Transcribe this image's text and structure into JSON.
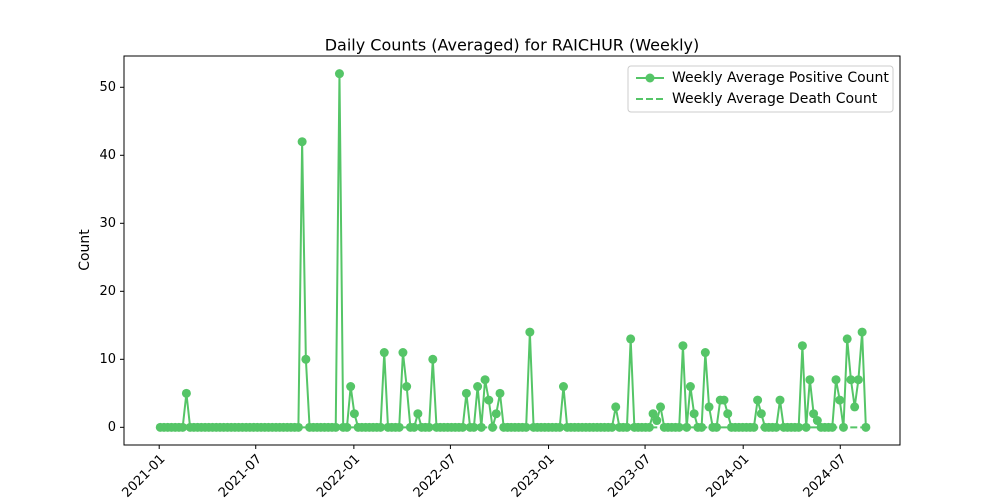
{
  "chart_data": {
    "type": "line",
    "title": "Daily Counts (Averaged) for RAICHUR (Weekly)",
    "ylabel": "Count",
    "x": [
      "2021-01-03",
      "2021-01-10",
      "2021-01-17",
      "2021-01-24",
      "2021-01-31",
      "2021-02-07",
      "2021-02-14",
      "2021-02-21",
      "2021-02-28",
      "2021-03-07",
      "2021-03-14",
      "2021-03-21",
      "2021-03-28",
      "2021-04-04",
      "2021-04-11",
      "2021-04-18",
      "2021-04-25",
      "2021-05-02",
      "2021-05-09",
      "2021-05-16",
      "2021-05-23",
      "2021-05-30",
      "2021-06-06",
      "2021-06-13",
      "2021-06-20",
      "2021-06-27",
      "2021-07-04",
      "2021-07-11",
      "2021-07-18",
      "2021-07-25",
      "2021-08-01",
      "2021-08-08",
      "2021-08-15",
      "2021-08-22",
      "2021-08-29",
      "2021-09-05",
      "2021-09-12",
      "2021-09-19",
      "2021-09-26",
      "2021-10-03",
      "2021-10-10",
      "2021-10-17",
      "2021-10-24",
      "2021-10-31",
      "2021-11-07",
      "2021-11-14",
      "2021-11-21",
      "2021-11-28",
      "2021-12-05",
      "2021-12-12",
      "2021-12-19",
      "2021-12-26",
      "2022-01-02",
      "2022-01-09",
      "2022-01-16",
      "2022-01-23",
      "2022-01-30",
      "2022-02-06",
      "2022-02-13",
      "2022-02-20",
      "2022-02-27",
      "2022-03-06",
      "2022-03-13",
      "2022-03-20",
      "2022-03-27",
      "2022-04-03",
      "2022-04-10",
      "2022-04-17",
      "2022-04-24",
      "2022-05-01",
      "2022-05-08",
      "2022-05-15",
      "2022-05-22",
      "2022-05-29",
      "2022-06-05",
      "2022-06-12",
      "2022-06-19",
      "2022-06-26",
      "2022-07-03",
      "2022-07-10",
      "2022-07-17",
      "2022-07-24",
      "2022-07-31",
      "2022-08-07",
      "2022-08-14",
      "2022-08-21",
      "2022-08-28",
      "2022-09-04",
      "2022-09-11",
      "2022-09-18",
      "2022-09-25",
      "2022-10-02",
      "2022-10-09",
      "2022-10-16",
      "2022-10-23",
      "2022-10-30",
      "2022-11-06",
      "2022-11-13",
      "2022-11-20",
      "2022-11-27",
      "2022-12-04",
      "2022-12-11",
      "2022-12-18",
      "2022-12-25",
      "2023-01-01",
      "2023-01-08",
      "2023-01-15",
      "2023-01-22",
      "2023-01-29",
      "2023-02-05",
      "2023-02-12",
      "2023-02-19",
      "2023-02-26",
      "2023-03-05",
      "2023-03-12",
      "2023-03-19",
      "2023-03-26",
      "2023-04-02",
      "2023-04-09",
      "2023-04-16",
      "2023-04-23",
      "2023-04-30",
      "2023-05-07",
      "2023-05-14",
      "2023-05-21",
      "2023-05-28",
      "2023-06-04",
      "2023-06-11",
      "2023-06-18",
      "2023-06-25",
      "2023-07-02",
      "2023-07-09",
      "2023-07-16",
      "2023-07-23",
      "2023-07-30",
      "2023-08-06",
      "2023-08-13",
      "2023-08-20",
      "2023-08-27",
      "2023-09-03",
      "2023-09-10",
      "2023-09-17",
      "2023-09-24",
      "2023-10-01",
      "2023-10-08",
      "2023-10-15",
      "2023-10-22",
      "2023-10-29",
      "2023-11-05",
      "2023-11-12",
      "2023-11-19",
      "2023-11-26",
      "2023-12-03",
      "2023-12-10",
      "2023-12-17",
      "2023-12-24",
      "2023-12-31",
      "2024-01-07",
      "2024-01-14",
      "2024-01-21",
      "2024-01-28",
      "2024-02-04",
      "2024-02-11",
      "2024-02-18",
      "2024-02-25",
      "2024-03-03",
      "2024-03-10",
      "2024-03-17",
      "2024-03-24",
      "2024-03-31",
      "2024-04-07",
      "2024-04-14",
      "2024-04-21",
      "2024-04-28",
      "2024-05-05",
      "2024-05-12",
      "2024-05-19",
      "2024-05-26",
      "2024-06-02",
      "2024-06-09",
      "2024-06-16",
      "2024-06-23",
      "2024-06-30",
      "2024-07-07",
      "2024-07-14",
      "2024-07-21",
      "2024-07-28",
      "2024-08-04",
      "2024-08-11",
      "2024-08-18"
    ],
    "series": [
      {
        "name": "Weekly Average Positive Count",
        "color": "#55c567",
        "style": "solid",
        "marker": true,
        "values": [
          0,
          0,
          0,
          0,
          0,
          0,
          0,
          5,
          0,
          0,
          0,
          0,
          0,
          0,
          0,
          0,
          0,
          0,
          0,
          0,
          0,
          0,
          0,
          0,
          0,
          0,
          0,
          0,
          0,
          0,
          0,
          0,
          0,
          0,
          0,
          0,
          0,
          0,
          42,
          10,
          0,
          0,
          0,
          0,
          0,
          0,
          0,
          0,
          52,
          0,
          0,
          6,
          2,
          0,
          0,
          0,
          0,
          0,
          0,
          0,
          11,
          0,
          0,
          0,
          0,
          11,
          6,
          0,
          0,
          2,
          0,
          0,
          0,
          10,
          0,
          0,
          0,
          0,
          0,
          0,
          0,
          0,
          5,
          0,
          0,
          6,
          0,
          7,
          4,
          0,
          2,
          5,
          0,
          0,
          0,
          0,
          0,
          0,
          0,
          14,
          0,
          0,
          0,
          0,
          0,
          0,
          0,
          0,
          6,
          0,
          0,
          0,
          0,
          0,
          0,
          0,
          0,
          0,
          0,
          0,
          0,
          0,
          3,
          0,
          0,
          0,
          13,
          0,
          0,
          0,
          0,
          0,
          2,
          1,
          3,
          0,
          0,
          0,
          0,
          0,
          12,
          0,
          6,
          2,
          0,
          0,
          11,
          3,
          0,
          0,
          4,
          4,
          2,
          0,
          0,
          0,
          0,
          0,
          0,
          0,
          4,
          2,
          0,
          0,
          0,
          0,
          4,
          0,
          0,
          0,
          0,
          0,
          12,
          0,
          7,
          2,
          1,
          0,
          0,
          0,
          0,
          7,
          4,
          0,
          13,
          7,
          3,
          7,
          14,
          0
        ]
      },
      {
        "name": "Weekly Average Death Count",
        "color": "#55c567",
        "style": "dashed",
        "marker": false,
        "values": [
          0,
          0,
          0,
          0,
          0,
          0,
          0,
          0,
          0,
          0,
          0,
          0,
          0,
          0,
          0,
          0,
          0,
          0,
          0,
          0,
          0,
          0,
          0,
          0,
          0,
          0,
          0,
          0,
          0,
          0,
          0,
          0,
          0,
          0,
          0,
          0,
          0,
          0,
          0,
          0,
          0,
          0,
          0,
          0,
          0,
          0,
          0,
          0,
          0,
          0,
          0,
          0,
          0,
          0,
          0,
          0,
          0,
          0,
          0,
          0,
          0,
          0,
          0,
          0,
          0,
          0,
          0,
          0,
          0,
          0,
          0,
          0,
          0,
          0,
          0,
          0,
          0,
          0,
          0,
          0,
          0,
          0,
          0,
          0,
          0,
          0,
          0,
          0,
          0,
          0,
          0,
          0,
          0,
          0,
          0,
          0,
          0,
          0,
          0,
          0,
          0,
          0,
          0,
          0,
          0,
          0,
          0,
          0,
          0,
          0,
          0,
          0,
          0,
          0,
          0,
          0,
          0,
          0,
          0,
          0,
          0,
          0,
          0,
          0,
          0,
          0,
          0,
          0,
          0,
          0,
          0,
          0,
          0,
          0,
          0,
          0,
          0,
          0,
          0,
          0,
          0,
          0,
          0,
          0,
          0,
          0,
          0,
          0,
          0,
          0,
          0,
          0,
          0,
          0,
          0,
          0,
          0,
          0,
          0,
          0,
          0,
          0,
          0,
          0,
          0,
          0,
          0,
          0,
          0,
          0,
          0,
          0,
          0,
          0,
          0,
          0,
          0,
          0,
          0,
          0,
          0,
          0,
          0,
          0,
          0,
          0,
          0,
          0,
          0,
          0
        ]
      }
    ],
    "xlim": [
      "2020-10-27",
      "2024-10-21"
    ],
    "xticks": [
      {
        "value": "2021-01-01",
        "label": "2021-01"
      },
      {
        "value": "2021-07-01",
        "label": "2021-07"
      },
      {
        "value": "2022-01-01",
        "label": "2022-01"
      },
      {
        "value": "2022-07-01",
        "label": "2022-07"
      },
      {
        "value": "2023-01-01",
        "label": "2023-01"
      },
      {
        "value": "2023-07-01",
        "label": "2023-07"
      },
      {
        "value": "2024-01-01",
        "label": "2024-01"
      },
      {
        "value": "2024-07-01",
        "label": "2024-07"
      }
    ],
    "ylim": [
      -2.6,
      54.6
    ],
    "yticks": [
      0,
      10,
      20,
      30,
      40,
      50
    ],
    "legend": "upper right"
  }
}
